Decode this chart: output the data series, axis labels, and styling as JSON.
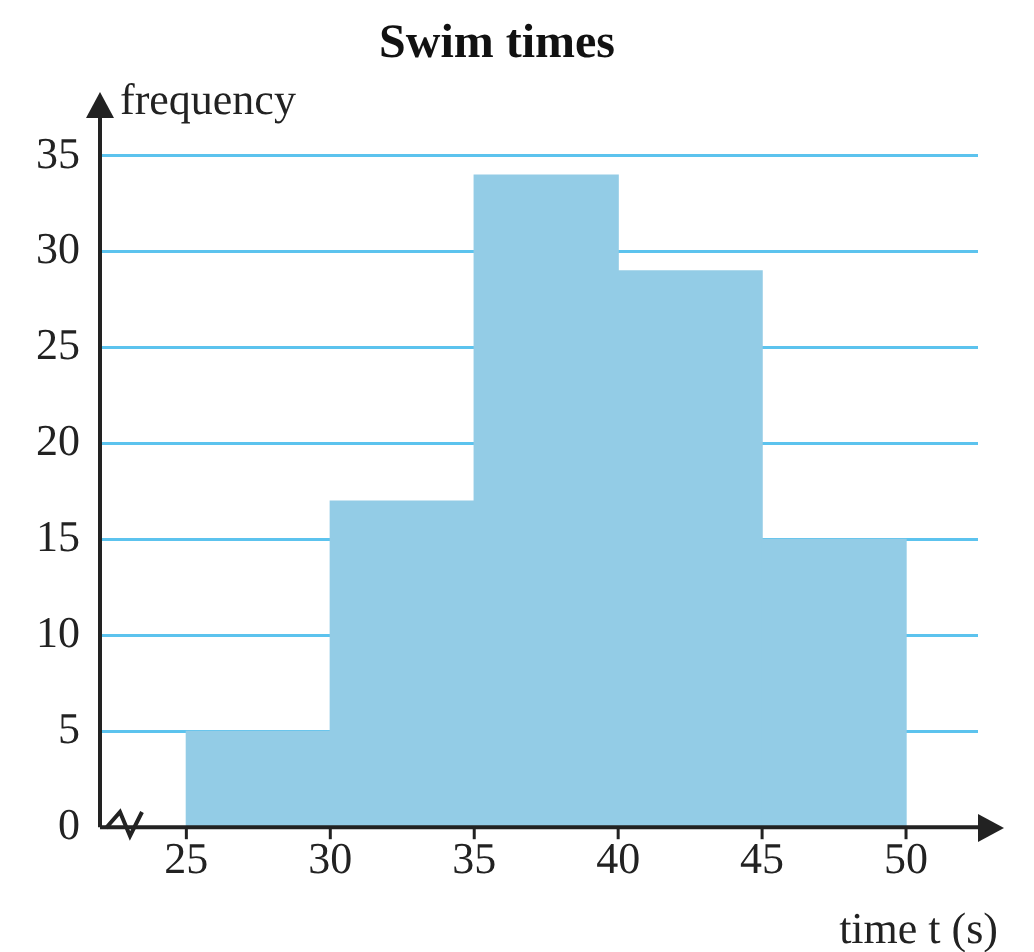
{
  "chart_data": {
    "type": "histogram",
    "title": "Swim times",
    "xlabel": "time t (s)",
    "ylabel": "frequency",
    "bins": [
      25,
      30,
      35,
      40,
      45,
      50
    ],
    "values": [
      5,
      17,
      34,
      29,
      15
    ],
    "color": "#93cce6",
    "xlim": [
      22,
      52.5
    ],
    "xticks": [
      25,
      30,
      35,
      40,
      45,
      50
    ],
    "ylim": [
      0,
      37
    ],
    "yticks": [
      0,
      5,
      10,
      15,
      20,
      25,
      30,
      35
    ],
    "grid": "y",
    "legend": false
  }
}
